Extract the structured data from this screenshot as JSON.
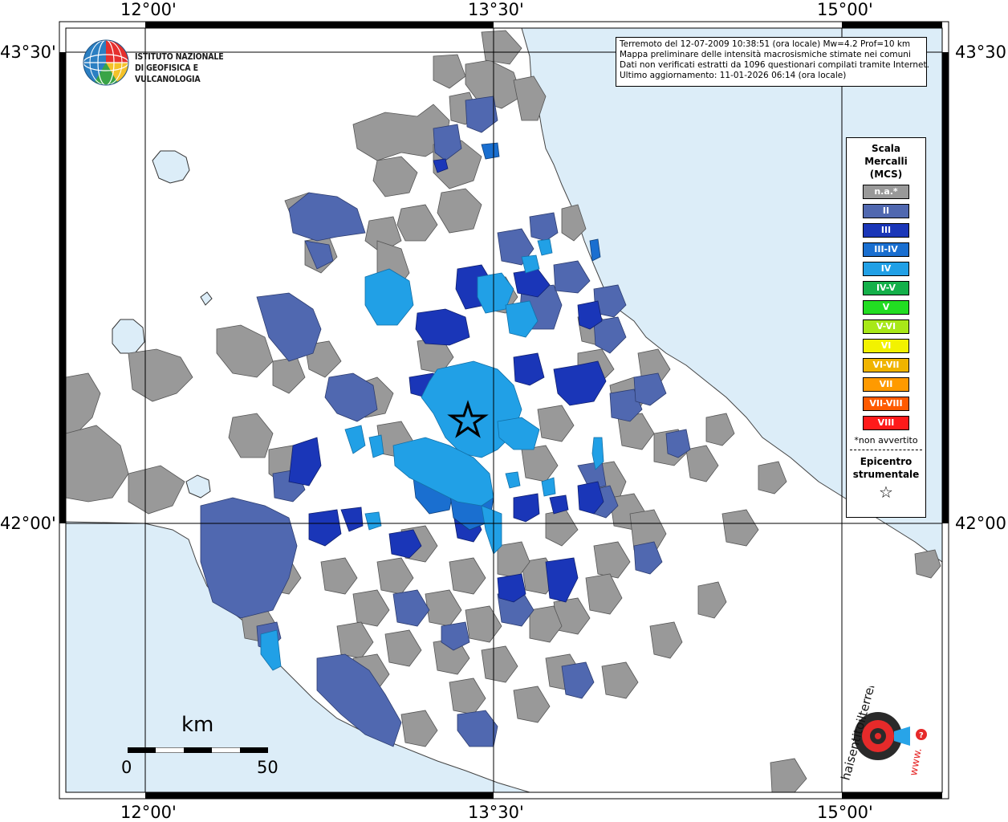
{
  "map": {
    "lon_labels": [
      "12°00'",
      "13°30'",
      "15°00'"
    ],
    "lat_labels": [
      "43°30'",
      "42°00'"
    ],
    "sea_color": "#dcedf8",
    "land_color": "#ffffff",
    "grid_color": "#000000"
  },
  "logo": {
    "line1": "ISTITUTO NAZIONALE",
    "line2": "DI GEOFISICA E VULCANOLOGIA",
    "icon": "ingv-globe-logo"
  },
  "info": {
    "line1": "Terremoto del 12-07-2009 10:38:51 (ora locale) Mw=4.2 Prof=10 km",
    "line2": "Mappa preliminare delle intensità macrosismiche stimate nei comuni",
    "line3": "Dati non verificati estratti da 1096 questionari compilati tramite Internet.",
    "line4": "Ultimo aggiornamento: 11-01-2026 06:14 (ora locale)"
  },
  "legend": {
    "title_line1": "Scala",
    "title_line2": "Mercalli",
    "title_line3": "(MCS)",
    "items": [
      {
        "label": "n.a.*",
        "color": "#999999"
      },
      {
        "label": "II",
        "color": "#5068b0"
      },
      {
        "label": "III",
        "color": "#1a36b8"
      },
      {
        "label": "III-IV",
        "color": "#1a6fd0"
      },
      {
        "label": "IV",
        "color": "#21a0e6"
      },
      {
        "label": "IV-V",
        "color": "#14b04a"
      },
      {
        "label": "V",
        "color": "#22dd22"
      },
      {
        "label": "V-VI",
        "color": "#a8e818"
      },
      {
        "label": "VI",
        "color": "#f2f200"
      },
      {
        "label": "VI-VII",
        "color": "#f0b400"
      },
      {
        "label": "VII",
        "color": "#ff9a00"
      },
      {
        "label": "VII-VIII",
        "color": "#ff5a00"
      },
      {
        "label": "VIII",
        "color": "#ff1a1a"
      }
    ],
    "note": "*non avvertito",
    "epicenter_line1": "Epicentro",
    "epicenter_line2": "strumentale",
    "epicenter_symbol": "☆"
  },
  "scale": {
    "unit": "km",
    "start": "0",
    "end": "50"
  },
  "watermark": {
    "text": "haisentitoilterremoto.it",
    "url": "www.",
    "icon": "hai-sentito-il-terremoto-logo"
  }
}
